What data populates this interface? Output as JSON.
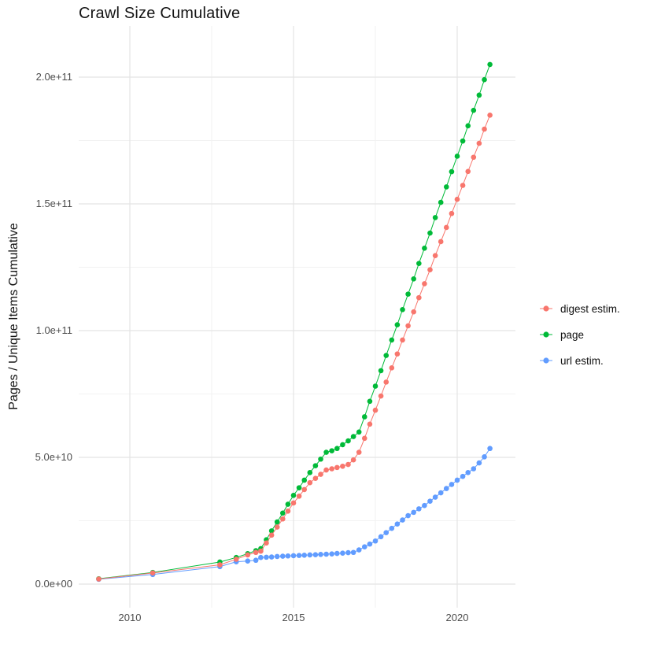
{
  "title": "Crawl Size Cumulative",
  "chart_data": {
    "type": "scatter",
    "title": "Crawl Size Cumulative",
    "xlabel": "",
    "ylabel": "Pages / Unique Items Cumulative",
    "unit_note": "y values are in billions (multiply by 1e9 to get items)",
    "x_range": [
      2008.4,
      2021.8
    ],
    "y_range_billions": [
      -9,
      220
    ],
    "grid": "major+minor",
    "legend_position": "right",
    "x_ticks": [
      {
        "value": 2010,
        "label": "2010"
      },
      {
        "value": 2015,
        "label": "2015"
      },
      {
        "value": 2020,
        "label": "2020"
      }
    ],
    "y_ticks": [
      {
        "value_billions": 0,
        "label": "0.0e+00"
      },
      {
        "value_billions": 50,
        "label": "5.0e+10"
      },
      {
        "value_billions": 100,
        "label": "1.0e+11"
      },
      {
        "value_billions": 150,
        "label": "1.5e+11"
      },
      {
        "value_billions": 200,
        "label": "2.0e+11"
      }
    ],
    "series": [
      {
        "id": "digest",
        "name": "digest estim.",
        "color": "#F8766D",
        "x": [
          2009.05,
          2010.7,
          2012.75,
          2013.25,
          2013.6,
          2013.85,
          2014.0,
          2014.17,
          2014.33,
          2014.5,
          2014.67,
          2014.83,
          2015.0,
          2015.17,
          2015.33,
          2015.5,
          2015.67,
          2015.83,
          2016.0,
          2016.17,
          2016.33,
          2016.5,
          2016.67,
          2016.83,
          2017.0,
          2017.17,
          2017.33,
          2017.5,
          2017.67,
          2017.83,
          2018.0,
          2018.17,
          2018.33,
          2018.5,
          2018.67,
          2018.83,
          2019.0,
          2019.17,
          2019.33,
          2019.5,
          2019.67,
          2019.83,
          2020.0,
          2020.17,
          2020.33,
          2020.5,
          2020.67,
          2020.83,
          2021.0
        ],
        "y_billions": [
          2.0,
          4.4,
          7.6,
          9.8,
          11.5,
          12.5,
          13.0,
          16.2,
          19.3,
          22.5,
          25.7,
          28.8,
          32.0,
          34.7,
          37.3,
          40.0,
          41.7,
          43.3,
          45.0,
          45.5,
          46.0,
          46.5,
          47.2,
          49.0,
          52.0,
          57.5,
          63.1,
          68.6,
          74.2,
          79.7,
          85.3,
          90.8,
          96.3,
          101.9,
          107.4,
          113.0,
          118.5,
          124.0,
          129.6,
          135.1,
          140.7,
          146.2,
          151.8,
          157.3,
          162.8,
          168.4,
          173.9,
          179.5,
          185.0
        ]
      },
      {
        "id": "page",
        "name": "page",
        "color": "#00BA38",
        "x": [
          2009.05,
          2010.7,
          2012.75,
          2013.25,
          2013.6,
          2013.85,
          2014.0,
          2014.17,
          2014.33,
          2014.5,
          2014.67,
          2014.83,
          2015.0,
          2015.17,
          2015.33,
          2015.5,
          2015.67,
          2015.83,
          2016.0,
          2016.17,
          2016.33,
          2016.5,
          2016.67,
          2016.83,
          2017.0,
          2017.17,
          2017.33,
          2017.5,
          2017.67,
          2017.83,
          2018.0,
          2018.17,
          2018.33,
          2018.5,
          2018.67,
          2018.83,
          2019.0,
          2019.17,
          2019.33,
          2019.5,
          2019.67,
          2019.83,
          2020.0,
          2020.17,
          2020.33,
          2020.5,
          2020.67,
          2020.83,
          2021.0
        ],
        "y_billions": [
          2.1,
          4.6,
          8.7,
          10.5,
          12.0,
          13.2,
          14.0,
          17.5,
          21.0,
          24.5,
          28.0,
          31.5,
          35.0,
          38.0,
          41.0,
          44.0,
          46.7,
          49.3,
          52.0,
          52.6,
          53.5,
          55.0,
          56.5,
          58.2,
          60.0,
          66.0,
          72.1,
          78.1,
          84.2,
          90.2,
          96.3,
          102.3,
          108.3,
          114.4,
          120.4,
          126.5,
          132.5,
          138.5,
          144.6,
          150.6,
          156.7,
          162.7,
          168.8,
          174.8,
          180.8,
          186.9,
          192.9,
          199.0,
          205.0
        ]
      },
      {
        "id": "url",
        "name": "url estim.",
        "color": "#619CFF",
        "x": [
          2009.05,
          2010.7,
          2012.75,
          2013.25,
          2013.6,
          2013.85,
          2014.0,
          2014.17,
          2014.33,
          2014.5,
          2014.67,
          2014.83,
          2015.0,
          2015.17,
          2015.33,
          2015.5,
          2015.67,
          2015.83,
          2016.0,
          2016.17,
          2016.33,
          2016.5,
          2016.67,
          2016.83,
          2017.0,
          2017.17,
          2017.33,
          2017.5,
          2017.67,
          2017.83,
          2018.0,
          2018.17,
          2018.33,
          2018.5,
          2018.67,
          2018.83,
          2019.0,
          2019.17,
          2019.33,
          2019.5,
          2019.67,
          2019.83,
          2020.0,
          2020.17,
          2020.33,
          2020.5,
          2020.67,
          2020.83,
          2021.0
        ],
        "y_billions": [
          1.9,
          3.8,
          6.9,
          8.8,
          9.1,
          9.4,
          10.5,
          10.6,
          10.7,
          10.9,
          11.0,
          11.1,
          11.2,
          11.3,
          11.4,
          11.5,
          11.6,
          11.7,
          11.8,
          11.9,
          12.1,
          12.2,
          12.4,
          12.5,
          13.5,
          14.7,
          15.8,
          17.0,
          18.7,
          20.3,
          22.0,
          23.7,
          25.3,
          27.0,
          28.3,
          29.7,
          31.0,
          32.7,
          34.3,
          36.0,
          37.7,
          39.3,
          41.0,
          42.5,
          44.0,
          45.5,
          47.8,
          50.2,
          53.5
        ]
      }
    ]
  }
}
